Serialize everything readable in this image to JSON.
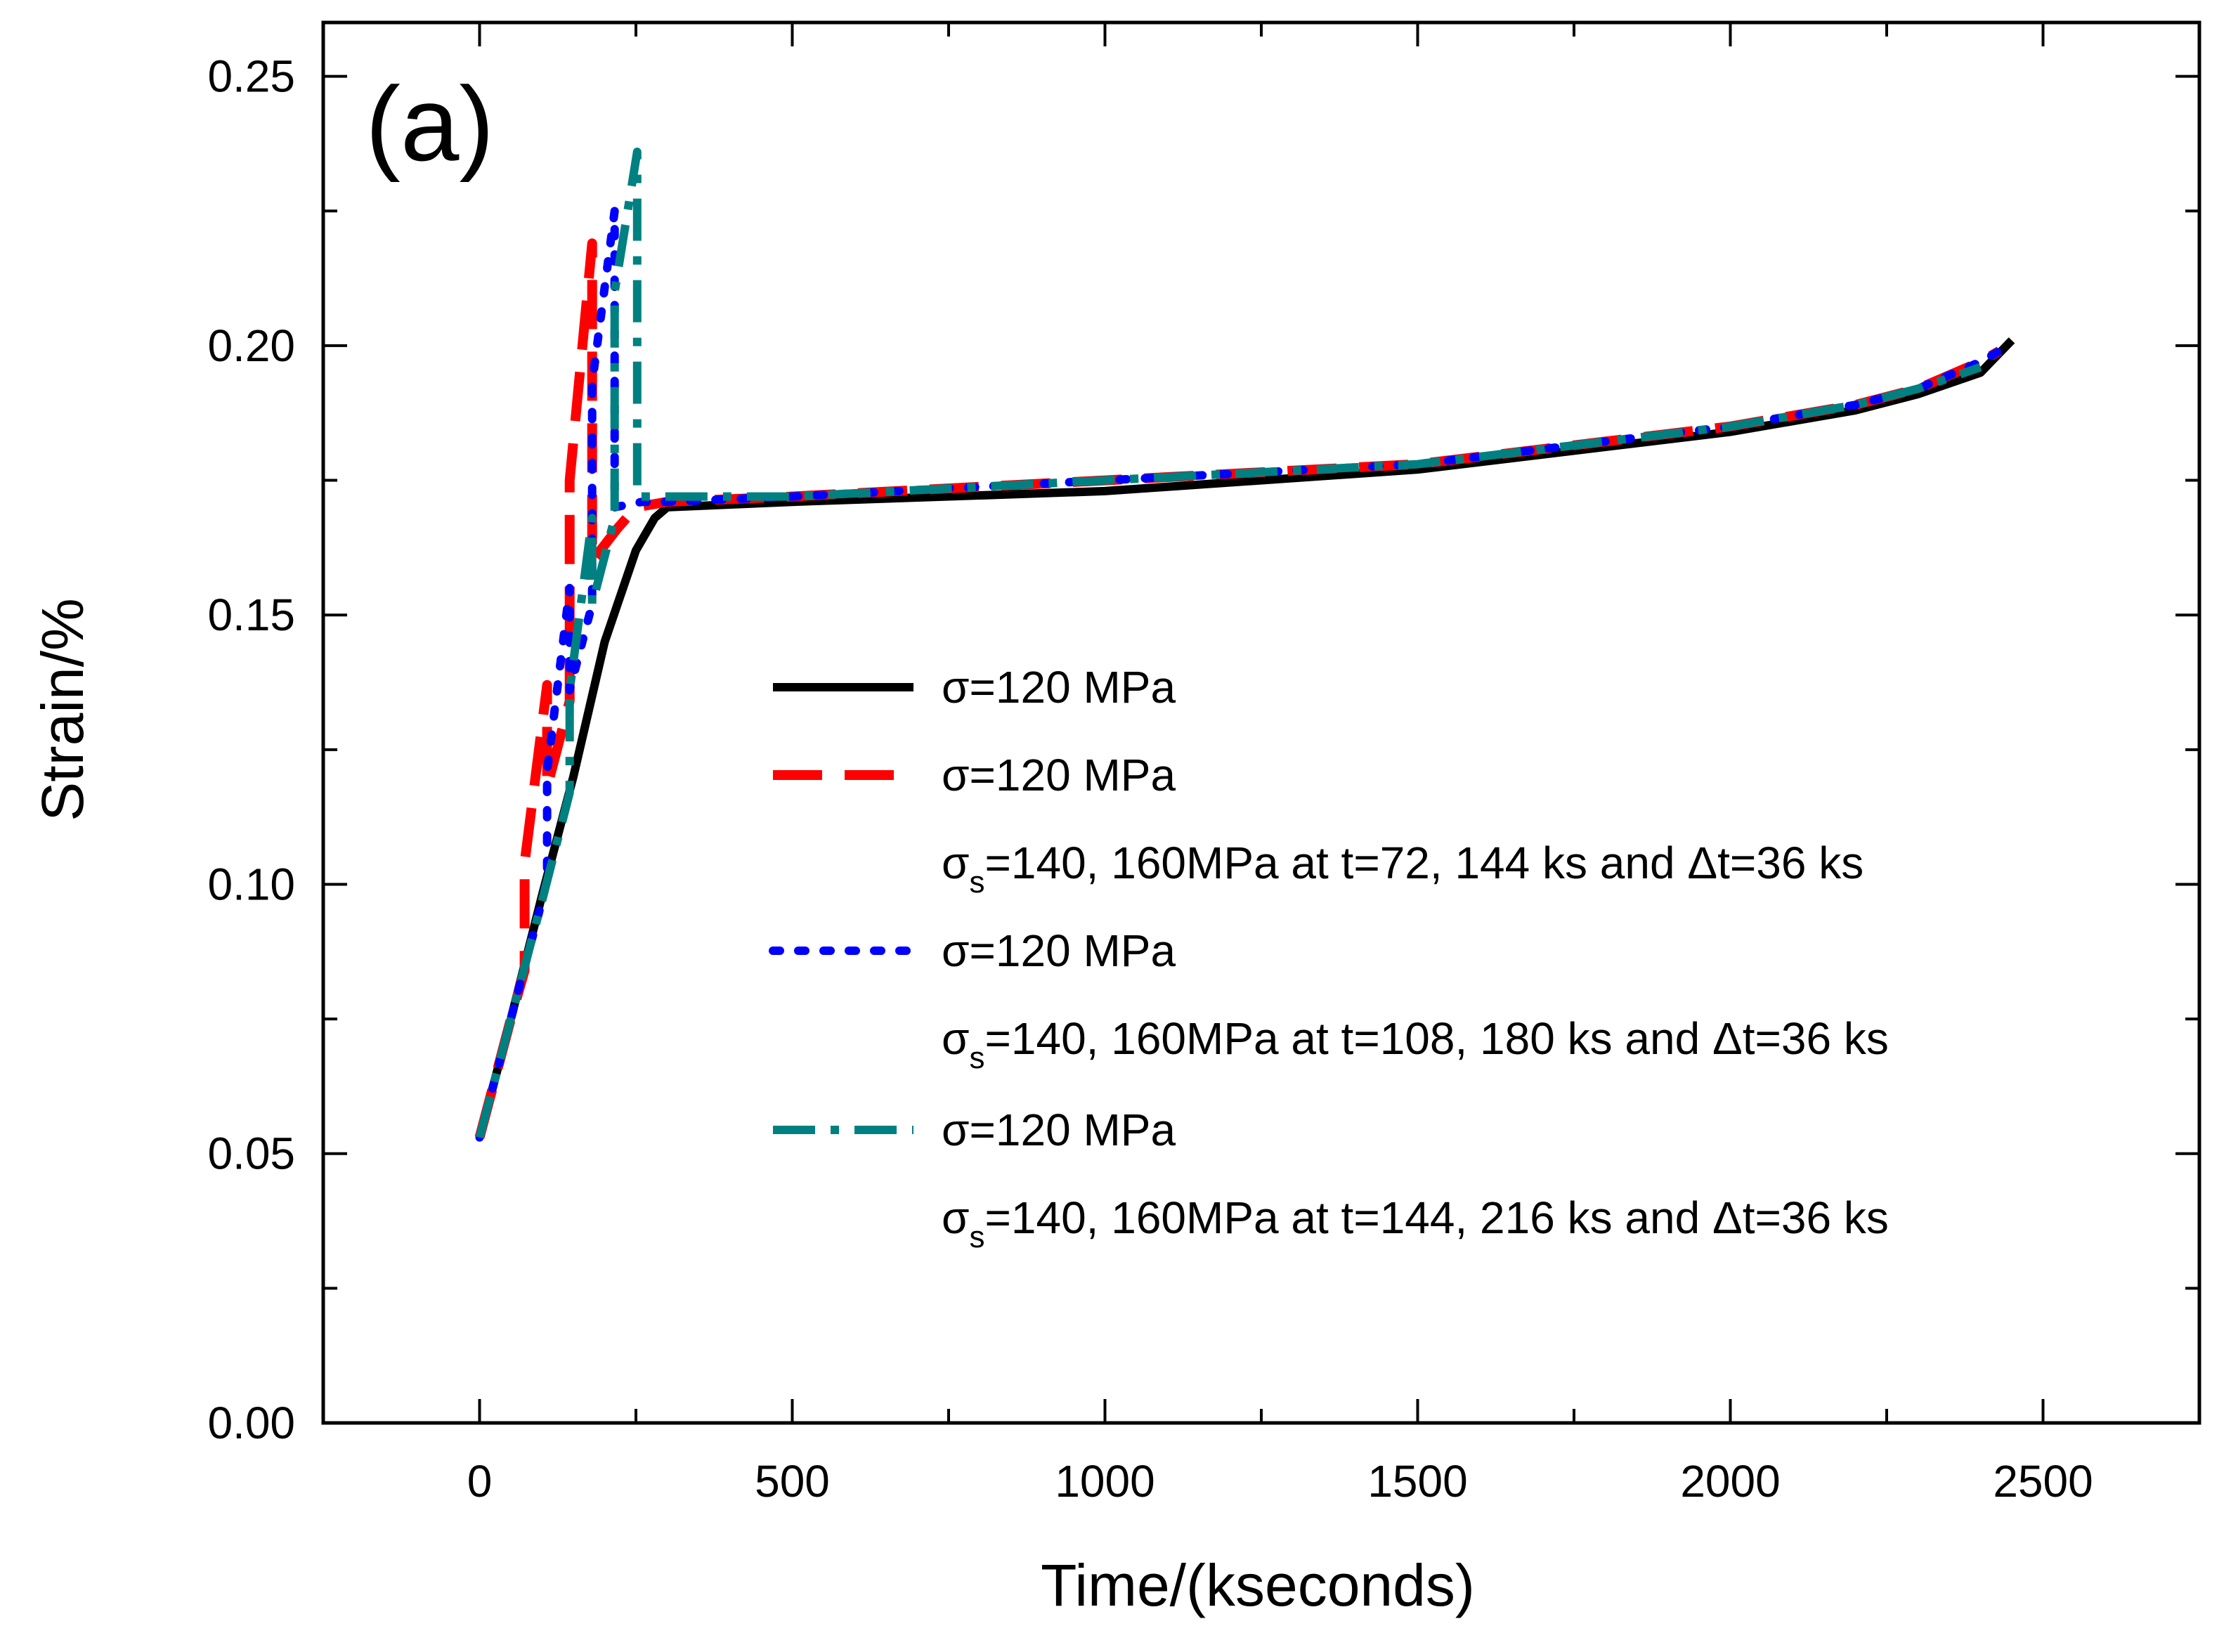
{
  "chart_data": {
    "type": "line",
    "panel_label": "(a)",
    "xlabel": "Time/(kseconds)",
    "ylabel": "Strain/%",
    "xlim": [
      -250,
      2750
    ],
    "ylim": [
      0.0,
      0.26
    ],
    "xticks": [
      0,
      500,
      1000,
      1500,
      2000,
      2500
    ],
    "xtick_labels": [
      "0",
      "500",
      "1000",
      "1500",
      "2000",
      "2500"
    ],
    "yticks": [
      0.0,
      0.05,
      0.1,
      0.15,
      0.2,
      0.25
    ],
    "ytick_labels": [
      "0.00",
      "0.05",
      "0.10",
      "0.15",
      "0.20",
      "0.25"
    ],
    "legend_position": "center-right",
    "series": [
      {
        "name": "σ=120 MPa",
        "color": "#000000",
        "style": "solid",
        "legend": {
          "line1": "σ=120 MPa",
          "line2": null
        },
        "points": [
          [
            0,
            0.053
          ],
          [
            50,
            0.075
          ],
          [
            100,
            0.098
          ],
          [
            150,
            0.12
          ],
          [
            200,
            0.145
          ],
          [
            250,
            0.162
          ],
          [
            280,
            0.168
          ],
          [
            300,
            0.17
          ],
          [
            500,
            0.171
          ],
          [
            1000,
            0.173
          ],
          [
            1500,
            0.177
          ],
          [
            2000,
            0.184
          ],
          [
            2200,
            0.188
          ],
          [
            2300,
            0.191
          ],
          [
            2400,
            0.195
          ],
          [
            2450,
            0.201
          ]
        ]
      },
      {
        "name": "σ=120 MPa; σs=140, 160MPa at t=72, 144 ks and Δt=36 ks",
        "color": "#ff0000",
        "style": "dashed",
        "legend": {
          "line1": "σ=120 MPa",
          "sigma": "σ",
          "sub": "s",
          "rest": "=140, 160MPa at t=72, 144 ks and Δt=36 ks"
        },
        "points": [
          [
            0,
            0.053
          ],
          [
            50,
            0.075
          ],
          [
            72,
            0.084
          ],
          [
            72,
            0.104
          ],
          [
            108,
            0.137
          ],
          [
            108,
            0.118
          ],
          [
            144,
            0.134
          ],
          [
            144,
            0.175
          ],
          [
            180,
            0.219
          ],
          [
            180,
            0.16
          ],
          [
            220,
            0.166
          ],
          [
            250,
            0.17
          ],
          [
            300,
            0.171
          ],
          [
            500,
            0.172
          ],
          [
            1000,
            0.175
          ],
          [
            1500,
            0.178
          ],
          [
            2000,
            0.185
          ],
          [
            2200,
            0.189
          ],
          [
            2300,
            0.192
          ],
          [
            2400,
            0.197
          ],
          [
            2430,
            0.199
          ]
        ]
      },
      {
        "name": "σ=120 MPa; σs=140, 160MPa at t=108, 180 ks and Δt=36 ks",
        "color": "#0000ff",
        "style": "dotted",
        "legend": {
          "line1": "σ=120 MPa",
          "sigma": "σ",
          "sub": "s",
          "rest": "=140, 160MPa at t=108, 180 ks and Δt=36 ks"
        },
        "points": [
          [
            0,
            0.053
          ],
          [
            50,
            0.075
          ],
          [
            100,
            0.097
          ],
          [
            108,
            0.101
          ],
          [
            108,
            0.121
          ],
          [
            144,
            0.155
          ],
          [
            144,
            0.136
          ],
          [
            180,
            0.152
          ],
          [
            180,
            0.193
          ],
          [
            216,
            0.225
          ],
          [
            216,
            0.17
          ],
          [
            260,
            0.171
          ],
          [
            300,
            0.171
          ],
          [
            500,
            0.172
          ],
          [
            1000,
            0.175
          ],
          [
            1500,
            0.178
          ],
          [
            2000,
            0.185
          ],
          [
            2200,
            0.189
          ],
          [
            2300,
            0.192
          ],
          [
            2400,
            0.197
          ],
          [
            2430,
            0.199
          ]
        ]
      },
      {
        "name": "σ=120 MPa; σs=140, 160MPa at t=144, 216 ks and Δt=36 ks",
        "color": "#008080",
        "style": "dashdot",
        "legend": {
          "line1": "σ=120 MPa",
          "sigma": "σ",
          "sub": "s",
          "rest": "=140, 160MPa at t=144, 216 ks and Δt=36 ks"
        },
        "points": [
          [
            0,
            0.053
          ],
          [
            50,
            0.075
          ],
          [
            100,
            0.097
          ],
          [
            144,
            0.117
          ],
          [
            144,
            0.136
          ],
          [
            180,
            0.168
          ],
          [
            180,
            0.152
          ],
          [
            216,
            0.168
          ],
          [
            216,
            0.21
          ],
          [
            252,
            0.236
          ],
          [
            252,
            0.172
          ],
          [
            300,
            0.172
          ],
          [
            500,
            0.172
          ],
          [
            1000,
            0.175
          ],
          [
            1500,
            0.178
          ],
          [
            2000,
            0.185
          ],
          [
            2200,
            0.189
          ],
          [
            2300,
            0.192
          ],
          [
            2400,
            0.196
          ]
        ]
      }
    ]
  }
}
